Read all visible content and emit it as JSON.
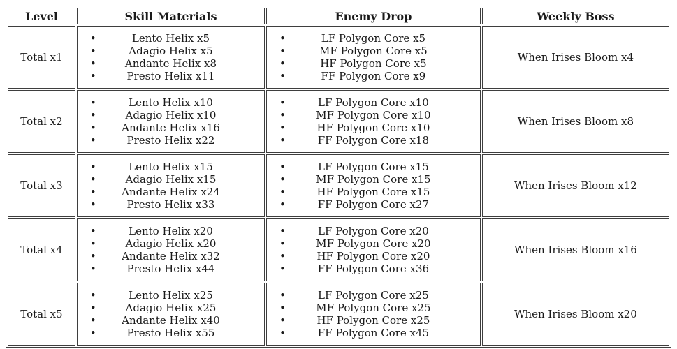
{
  "colors": {
    "bg": "#ffffff",
    "text": "#1a1a1a",
    "border": "#3e3e3e"
  },
  "table": {
    "headers": [
      "Level",
      "Skill Materials",
      "Enemy Drop",
      "Weekly Boss"
    ],
    "rows": [
      {
        "level": "Total x1",
        "skill_materials": [
          "Lento Helix x5",
          "Adagio Helix x5",
          "Andante Helix x8",
          "Presto Helix x11"
        ],
        "enemy_drop": [
          "LF Polygon Core x5",
          "MF Polygon Core x5",
          "HF Polygon Core x5",
          "FF Polygon Core x9"
        ],
        "weekly_boss": "When Irises Bloom x4"
      },
      {
        "level": "Total x2",
        "skill_materials": [
          "Lento Helix x10",
          "Adagio Helix x10",
          "Andante Helix x16",
          "Presto Helix x22"
        ],
        "enemy_drop": [
          "LF Polygon Core x10",
          "MF Polygon Core x10",
          "HF Polygon Core x10",
          "FF Polygon Core x18"
        ],
        "weekly_boss": "When Irises Bloom x8"
      },
      {
        "level": "Total x3",
        "skill_materials": [
          "Lento Helix x15",
          "Adagio Helix x15",
          "Andante Helix x24",
          "Presto Helix x33"
        ],
        "enemy_drop": [
          "LF Polygon Core x15",
          "MF Polygon Core x15",
          "HF Polygon Core x15",
          "FF Polygon Core x27"
        ],
        "weekly_boss": "When Irises Bloom x12"
      },
      {
        "level": "Total x4",
        "skill_materials": [
          "Lento Helix x20",
          "Adagio Helix x20",
          "Andante Helix x32",
          "Presto Helix x44"
        ],
        "enemy_drop": [
          "LF Polygon Core x20",
          "MF Polygon Core x20",
          "HF Polygon Core x20",
          "FF Polygon Core x36"
        ],
        "weekly_boss": "When Irises Bloom x16"
      },
      {
        "level": "Total x5",
        "skill_materials": [
          "Lento Helix x25",
          "Adagio Helix x25",
          "Andante Helix x40",
          "Presto Helix x55"
        ],
        "enemy_drop": [
          "LF Polygon Core x25",
          "MF Polygon Core x25",
          "HF Polygon Core x25",
          "FF Polygon Core x45"
        ],
        "weekly_boss": "When Irises Bloom x20"
      }
    ]
  }
}
